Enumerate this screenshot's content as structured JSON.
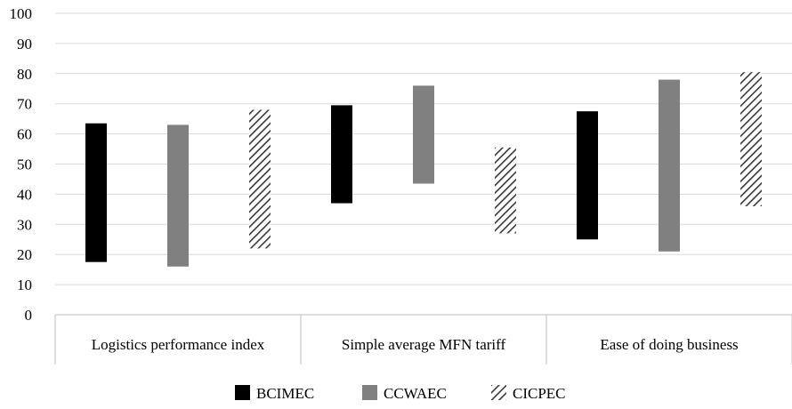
{
  "chart_data": {
    "type": "bar",
    "subtype": "floating-range-bar",
    "categories": [
      "Logistics performance index",
      "Simple average MFN tariff",
      "Ease of doing business"
    ],
    "series": [
      {
        "name": "BCIMEC",
        "color": "#000000",
        "pattern": "solid",
        "ranges": [
          [
            17.5,
            63.5
          ],
          [
            37,
            69.5
          ],
          [
            25,
            67.5
          ]
        ]
      },
      {
        "name": "CCWAEC",
        "color": "#808080",
        "pattern": "solid",
        "ranges": [
          [
            16,
            63
          ],
          [
            43.5,
            76
          ],
          [
            21,
            78
          ]
        ]
      },
      {
        "name": "CICPEC",
        "color": "#555555",
        "pattern": "diagonal-hatch",
        "ranges": [
          [
            22,
            68
          ],
          [
            27,
            55.5
          ],
          [
            36,
            80.5
          ]
        ]
      }
    ],
    "yticks": [
      "0",
      "10",
      "20",
      "30",
      "40",
      "50",
      "60",
      "70",
      "80",
      "90",
      "100"
    ],
    "ylim": [
      0,
      100
    ],
    "grid": true,
    "legend_position": "bottom",
    "title": "",
    "xlabel": "",
    "ylabel": ""
  }
}
